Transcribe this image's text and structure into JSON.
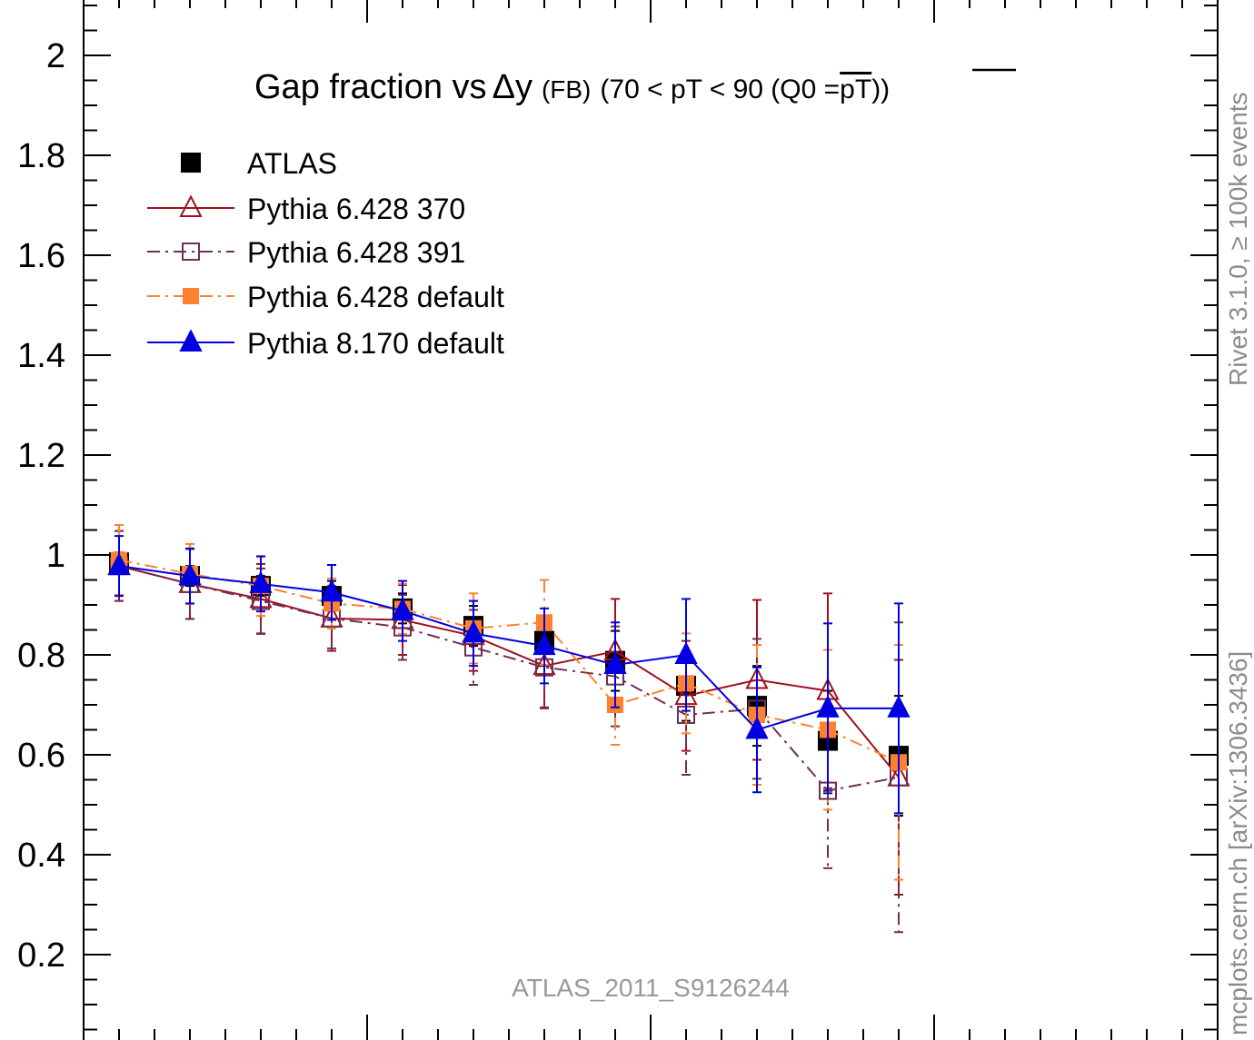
{
  "chart_data": {
    "type": "line",
    "title": "Gap fraction vsΔy (FB) (70 < pT <  90 (Q0 =pT))",
    "title_parts": {
      "main": "Gap fraction vs",
      "delta_y": "Δy",
      "fb": "(FB)",
      "range": "(70 < pT <  90 (Q0 =",
      "pt_bar": "pT",
      "close": "))"
    },
    "xlabel": "",
    "ylabel": "",
    "xlim": [
      0.0,
      8.0
    ],
    "ylim": [
      0.0,
      2.1
    ],
    "yticks": [
      0.2,
      0.4,
      0.6,
      0.8,
      1.0,
      1.2,
      1.4,
      1.6,
      1.8,
      2.0
    ],
    "ytick_labels": [
      "0.2",
      "0.4",
      "0.6",
      "0.8",
      "1",
      "1.2",
      "1.4",
      "1.6",
      "1.8",
      "2"
    ],
    "x": [
      0.25,
      0.75,
      1.25,
      1.75,
      2.25,
      2.75,
      3.25,
      3.75,
      4.25,
      4.75,
      5.25,
      5.75
    ],
    "legend_position": "top-left",
    "series": [
      {
        "name": "ATLAS",
        "style": "data",
        "color": "#000000",
        "marker": "square-filled",
        "values": [
          0.985,
          0.958,
          0.938,
          0.918,
          0.893,
          0.858,
          0.828,
          0.788,
          0.738,
          0.698,
          0.628,
          0.598
        ],
        "errors": [
          0.02,
          0.02,
          0.02,
          0.03,
          0.03,
          0.04,
          0.05,
          0.06,
          0.07,
          0.08,
          0.1,
          0.12
        ]
      },
      {
        "name": "Pythia 6.428 370",
        "style": "solid",
        "color": "#a01020",
        "marker": "triangle-open",
        "values": [
          0.978,
          0.942,
          0.912,
          0.873,
          0.87,
          0.838,
          0.778,
          0.807,
          0.718,
          0.75,
          0.728,
          0.555
        ],
        "errors": [
          0.07,
          0.07,
          0.07,
          0.065,
          0.07,
          0.07,
          0.085,
          0.105,
          0.11,
          0.16,
          0.195,
          0.235
        ]
      },
      {
        "name": "Pythia 6.428 391",
        "style": "dashdot",
        "color": "#6e3050",
        "marker": "square-open",
        "values": [
          0.978,
          0.942,
          0.908,
          0.873,
          0.855,
          0.815,
          0.775,
          0.757,
          0.68,
          0.692,
          0.528,
          0.555
        ],
        "errors": [
          0.07,
          0.07,
          0.065,
          0.06,
          0.065,
          0.075,
          0.08,
          0.1,
          0.12,
          0.14,
          0.155,
          0.31
        ]
      },
      {
        "name": "Pythia 6.428 default",
        "style": "dashdot",
        "color": "#ff8030",
        "marker": "square-filled",
        "values": [
          0.99,
          0.962,
          0.938,
          0.903,
          0.892,
          0.853,
          0.865,
          0.7,
          0.743,
          0.68,
          0.65,
          0.585
        ],
        "errors": [
          0.07,
          0.06,
          0.06,
          0.05,
          0.05,
          0.07,
          0.085,
          0.08,
          0.1,
          0.14,
          0.16,
          0.235
        ]
      },
      {
        "name": "Pythia 8.170 default",
        "style": "solid",
        "color": "#0000e0",
        "marker": "triangle-filled",
        "values": [
          0.978,
          0.958,
          0.942,
          0.925,
          0.888,
          0.843,
          0.818,
          0.78,
          0.8,
          0.65,
          0.693,
          0.693
        ],
        "errors": [
          0.06,
          0.055,
          0.055,
          0.055,
          0.06,
          0.065,
          0.075,
          0.085,
          0.112,
          0.125,
          0.17,
          0.21
        ]
      }
    ],
    "annotation": "ATLAS_2011_S9126244",
    "side_label_top": "Rivet 3.1.0, ≥ 100k events",
    "side_label_bottom": "mcplots.cern.ch [arXiv:1306.3436]"
  }
}
